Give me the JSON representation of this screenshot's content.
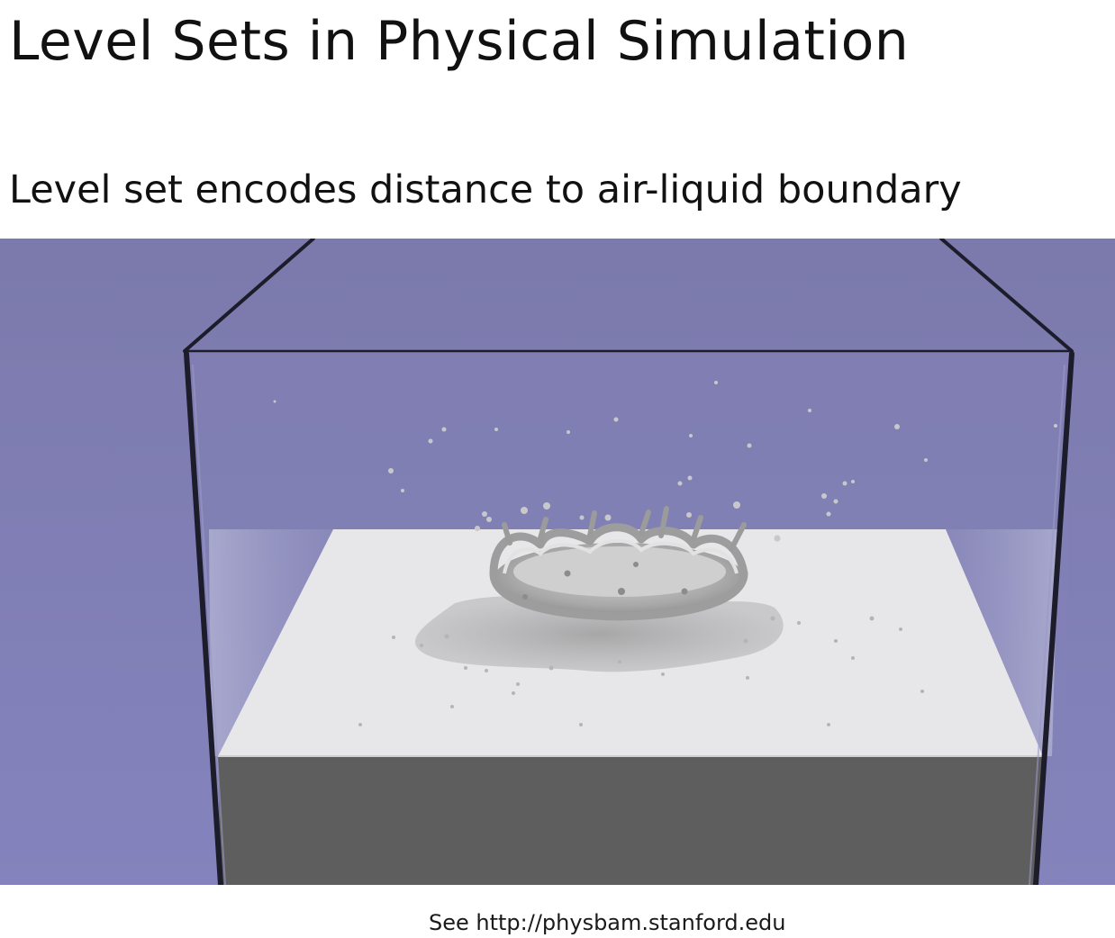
{
  "slide": {
    "title": "Level Sets in Physical Simulation",
    "subtitle": "Level set encodes distance to air-liquid boundary",
    "credit": "See http://physbam.stanford.edu"
  },
  "figure": {
    "description": "rendered splash crown of liquid in a glass tank over a white block",
    "background_color": "#7f7eb0",
    "block_top_color": "#e6e6e8",
    "block_front_color": "#5e5e5e",
    "tank_edge_color": "#1c1c2a"
  }
}
